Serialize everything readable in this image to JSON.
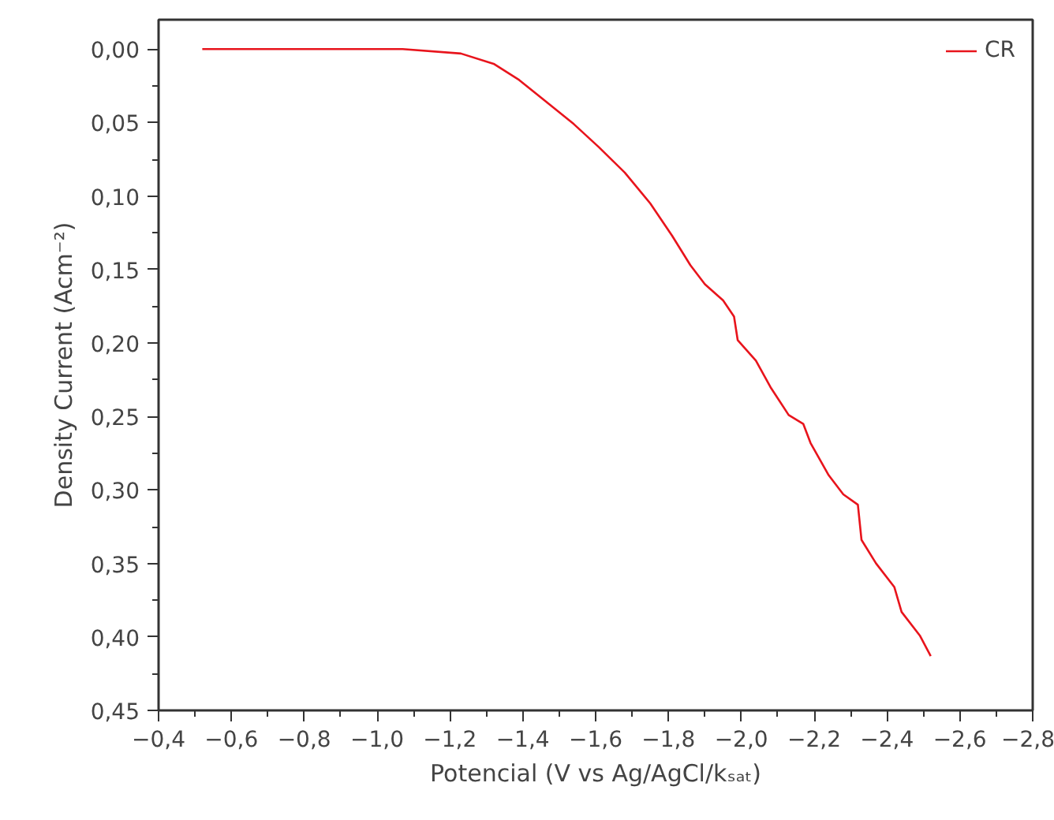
{
  "chart_data": {
    "type": "line",
    "xlabel": "Potencial (V vs Ag/AgCl/kₛₐₜ)",
    "ylabel": "Density Current (Acm⁻²)",
    "xlim": [
      -0.4,
      -2.8
    ],
    "ylim": [
      0.45,
      -0.02
    ],
    "xticks": [
      {
        "value": -0.4,
        "label": "−0,4"
      },
      {
        "value": -0.6,
        "label": "−0,6"
      },
      {
        "value": -0.8,
        "label": "−0,8"
      },
      {
        "value": -1.0,
        "label": "−1,0"
      },
      {
        "value": -1.2,
        "label": "−1,2"
      },
      {
        "value": -1.4,
        "label": "−1,4"
      },
      {
        "value": -1.6,
        "label": "−1,6"
      },
      {
        "value": -1.8,
        "label": "−1,8"
      },
      {
        "value": -2.0,
        "label": "−2,0"
      },
      {
        "value": -2.2,
        "label": "−2,2"
      },
      {
        "value": -2.4,
        "label": "−2,4"
      },
      {
        "value": -2.6,
        "label": "−2,6"
      },
      {
        "value": -2.8,
        "label": "−2,8"
      }
    ],
    "yticks": [
      {
        "value": 0.0,
        "label": "0,00"
      },
      {
        "value": 0.05,
        "label": "0,05"
      },
      {
        "value": 0.1,
        "label": "0,10"
      },
      {
        "value": 0.15,
        "label": "0,15"
      },
      {
        "value": 0.2,
        "label": "0,20"
      },
      {
        "value": 0.25,
        "label": "0,25"
      },
      {
        "value": 0.3,
        "label": "0,30"
      },
      {
        "value": 0.35,
        "label": "0,35"
      },
      {
        "value": 0.4,
        "label": "0,40"
      },
      {
        "value": 0.45,
        "label": "0,45"
      }
    ],
    "grid": false,
    "legend": "top right",
    "series": [
      {
        "name": "CR",
        "color": "#e8141c",
        "x": [
          -0.52,
          -0.8,
          -1.07,
          -1.23,
          -1.32,
          -1.39,
          -1.45,
          -1.54,
          -1.61,
          -1.68,
          -1.75,
          -1.81,
          -1.86,
          -1.9,
          -1.95,
          -1.98,
          -1.99,
          -2.04,
          -2.08,
          -2.13,
          -2.17,
          -2.19,
          -2.24,
          -2.28,
          -2.32,
          -2.33,
          -2.37,
          -2.42,
          -2.44,
          -2.49,
          -2.52
        ],
        "values": [
          0.0,
          0.0,
          0.0,
          0.003,
          0.01,
          0.021,
          0.033,
          0.051,
          0.067,
          0.084,
          0.105,
          0.127,
          0.147,
          0.16,
          0.171,
          0.182,
          0.198,
          0.212,
          0.23,
          0.249,
          0.255,
          0.268,
          0.29,
          0.303,
          0.31,
          0.334,
          0.35,
          0.366,
          0.383,
          0.399,
          0.413
        ]
      }
    ]
  }
}
